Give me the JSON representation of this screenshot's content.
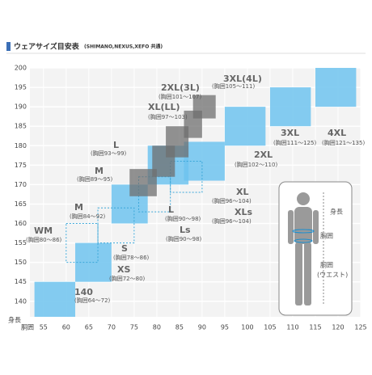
{
  "chart_data": {
    "type": "size-boxes",
    "title": "ウェアサイズ目安表",
    "subtitle": "(SHIMANO,NEXUS,XEFO 共通)",
    "x_label": "胴囲",
    "y_label": "身長",
    "xlim": [
      52,
      125
    ],
    "xticks": [
      55,
      60,
      65,
      70,
      75,
      80,
      85,
      90,
      95,
      100,
      105,
      110,
      115,
      120,
      125
    ],
    "ylim": [
      136,
      200
    ],
    "yticks": [
      140,
      145,
      150,
      155,
      160,
      165,
      170,
      175,
      180,
      185,
      190,
      195,
      200
    ],
    "grid": true,
    "styles": {
      "solid": "#6ec3ee",
      "dashed": "#3aa6d8",
      "gray": "#6f6f6f"
    },
    "sizes": [
      {
        "name": "140",
        "range": "(胸囲64～72)",
        "style": "solid",
        "x": [
          53,
          62
        ],
        "y": [
          136,
          145
        ]
      },
      {
        "name": "XS",
        "range": "(胸囲72～80)",
        "style": "solid",
        "x": [
          62,
          70
        ],
        "y": [
          145,
          155
        ]
      },
      {
        "name": "S",
        "range": "(胸囲78～86)",
        "style": "dashed",
        "x": [
          67,
          75
        ],
        "y": [
          155,
          164
        ]
      },
      {
        "name": "WM",
        "range": "(胸囲80～86)",
        "style": "dashed",
        "x": [
          60,
          67
        ],
        "y": [
          150,
          160
        ]
      },
      {
        "name": "M",
        "range": "(胸囲84～92)",
        "style": "solid",
        "x": [
          70,
          78
        ],
        "y": [
          160,
          170
        ]
      },
      {
        "name": "M",
        "range": "(胸囲89～95)",
        "style": "gray",
        "x": [
          74,
          80
        ],
        "y": [
          167,
          174
        ]
      },
      {
        "name": "L",
        "range": "(胸囲90～98)",
        "style": "solid",
        "x": [
          78,
          87
        ],
        "y": [
          170,
          180
        ]
      },
      {
        "name": "Ls",
        "range": "(胸囲90～98)",
        "style": "dashed",
        "x": [
          76,
          83
        ],
        "y": [
          163,
          172
        ]
      },
      {
        "name": "L",
        "range": "(胸囲93～99)",
        "style": "gray",
        "x": [
          79,
          84
        ],
        "y": [
          172,
          180
        ]
      },
      {
        "name": "XL",
        "range": "(胸囲96～104)",
        "style": "solid",
        "x": [
          86,
          95
        ],
        "y": [
          171,
          181
        ]
      },
      {
        "name": "XLs",
        "range": "(胸囲96～104)",
        "style": "dashed",
        "x": [
          83,
          90
        ],
        "y": [
          168,
          176
        ]
      },
      {
        "name": "XL(LL)",
        "range": "(胸囲97～103)",
        "style": "gray",
        "x": [
          82,
          87
        ],
        "y": [
          177,
          185
        ]
      },
      {
        "name": "2XL",
        "range": "(胸囲102～110)",
        "style": "solid",
        "x": [
          95,
          104
        ],
        "y": [
          180,
          190
        ]
      },
      {
        "name": "2XL(3L)",
        "range": "(胸囲101～107)",
        "style": "gray",
        "x": [
          86,
          90
        ],
        "y": [
          182,
          189
        ]
      },
      {
        "name": "3XL(4L)",
        "range": "(胸囲105～111)",
        "style": "gray",
        "x": [
          88,
          93
        ],
        "y": [
          187,
          193
        ]
      },
      {
        "name": "3XL",
        "range": "(胸囲111～125)",
        "style": "solid",
        "x": [
          105,
          114
        ],
        "y": [
          185,
          195
        ]
      },
      {
        "name": "4XL",
        "range": "(胸囲121～135)",
        "style": "solid",
        "x": [
          115,
          124
        ],
        "y": [
          190,
          200
        ]
      }
    ]
  },
  "figure": {
    "labels": [
      "身長",
      "胸囲",
      "胴囲",
      "(ウエスト)"
    ]
  }
}
